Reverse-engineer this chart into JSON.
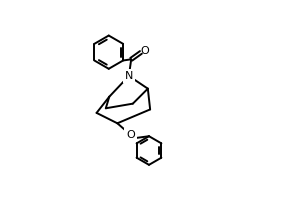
{
  "bg_color": "#ffffff",
  "line_color": "#000000",
  "line_width": 1.4,
  "figsize": [
    3.0,
    2.0
  ],
  "dpi": 100,
  "xlim": [
    0,
    10
  ],
  "ylim": [
    0,
    6.67
  ]
}
